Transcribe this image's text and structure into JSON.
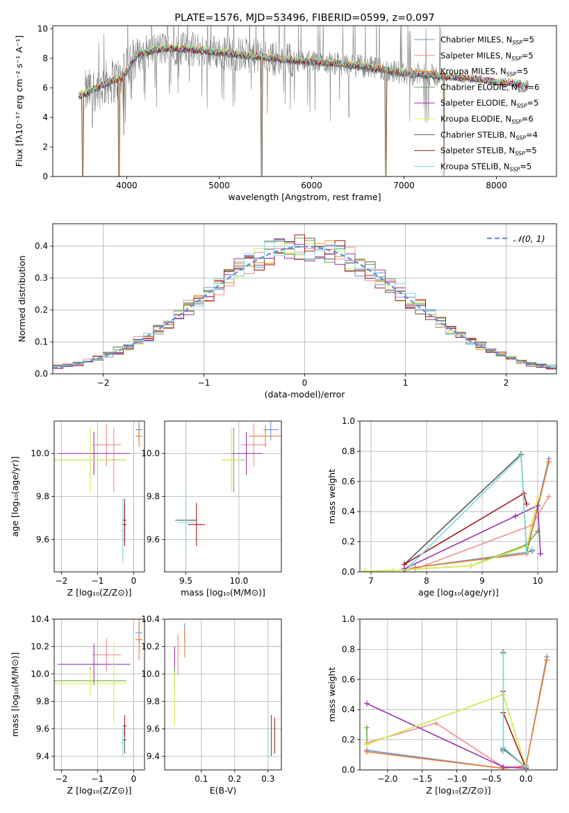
{
  "colors": {
    "chabrier_miles": "#6b8fd4",
    "salpeter_miles": "#f08c8c",
    "kroupa_miles": "#ee7d2a",
    "chabrier_elodie": "#6aa84f",
    "salpeter_elodie": "#9b30b0",
    "kroupa_elodie": "#d9ef50",
    "chabrier_stelib": "#555555",
    "salpeter_stelib": "#a01818",
    "kroupa_stelib": "#7ed8dc",
    "extra_pink": "#e377c2",
    "normal": "#6a8fd6",
    "grid": "#b0b0b0",
    "gray_spec": "#808080"
  },
  "chart_data": [
    {
      "id": "spectrum",
      "type": "line",
      "title": "PLATE=1576, MJD=53496, FIBERID=0599, z=0.097",
      "xlabel": "wavelength [Angstrom, rest frame]",
      "ylabel": "Flux [fλ10⁻¹⁷ erg cm⁻² s⁻¹ A⁻¹]",
      "xlim": [
        3200,
        8650
      ],
      "ylim": [
        0,
        10.2
      ],
      "xticks": [
        4000,
        5000,
        6000,
        7000,
        8000
      ],
      "yticks": [
        0,
        2,
        4,
        6,
        8,
        10
      ],
      "grid": false,
      "legend_loc": "upper right",
      "data_range": [
        3480,
        8350
      ],
      "continuum": {
        "x": [
          3480,
          3550,
          3700,
          3850,
          3950,
          4100,
          4300,
          4500,
          4700,
          5000,
          5300,
          5600,
          5900,
          6200,
          6500,
          6800,
          7000,
          7200,
          7400,
          7600,
          7800,
          8000,
          8200,
          8350
        ],
        "y": [
          5.5,
          5.6,
          6.1,
          6.5,
          6.6,
          8.2,
          8.6,
          8.7,
          8.6,
          8.4,
          8.2,
          8.0,
          7.8,
          7.7,
          7.5,
          7.2,
          7.0,
          6.9,
          6.8,
          6.7,
          6.6,
          6.4,
          6.3,
          6.2
        ]
      },
      "dips": [
        {
          "x": 3525,
          "y": 0.0
        },
        {
          "x": 3915,
          "y": 0.0
        },
        {
          "x": 3968,
          "y": 2.8
        },
        {
          "x": 5460,
          "y": 0.0
        },
        {
          "x": 6805,
          "y": 0.0
        },
        {
          "x": 7430,
          "y": 0.0
        }
      ],
      "gray_noise_range": [
        3550,
        7400
      ],
      "series": [
        {
          "label": "Chabrier MILES, N",
          "sub": "SSP",
          "eq": "=5",
          "color_key": "chabrier_miles"
        },
        {
          "label": "Salpeter MILES, N",
          "sub": "SSP",
          "eq": "=5",
          "color_key": "salpeter_miles"
        },
        {
          "label": "Kroupa MILES, N",
          "sub": "SSP",
          "eq": "=5",
          "color_key": "kroupa_miles"
        },
        {
          "label": "Chabrier ELODIE, N",
          "sub": "SSP",
          "eq": "=6",
          "color_key": "chabrier_elodie"
        },
        {
          "label": "Salpeter ELODIE, N",
          "sub": "SSP",
          "eq": "=5",
          "color_key": "salpeter_elodie"
        },
        {
          "label": "Kroupa ELODIE, N",
          "sub": "SSP",
          "eq": "=6",
          "color_key": "kroupa_elodie"
        },
        {
          "label": "Chabrier STELIB, N",
          "sub": "SSP",
          "eq": "=4",
          "color_key": "chabrier_stelib"
        },
        {
          "label": "Salpeter STELIB, N",
          "sub": "SSP",
          "eq": "=5",
          "color_key": "salpeter_stelib"
        },
        {
          "label": "Kroupa STELIB, N",
          "sub": "SSP",
          "eq": "=5",
          "color_key": "kroupa_stelib"
        }
      ]
    },
    {
      "id": "residuals",
      "type": "line",
      "xlabel": "(data-model)/error",
      "ylabel": "Normed distribution",
      "xlim": [
        -2.5,
        2.5
      ],
      "ylim": [
        0,
        0.47
      ],
      "xticks": [
        -2,
        -1,
        0,
        1,
        2
      ],
      "yticks": [
        0.0,
        0.1,
        0.2,
        0.3,
        0.4
      ],
      "grid": true,
      "legend_loc": "upper right",
      "normal_label": "𝒩(0, 1)",
      "bin_width": 0.1
    },
    {
      "id": "age_vs_z",
      "type": "scatter",
      "xlabel": "Z [log₁₀(Z/Z⊙)]",
      "ylabel": "age  [log₁₀(age/yr)]",
      "xlim": [
        -2.2,
        0.3
      ],
      "ylim": [
        9.45,
        10.15
      ],
      "xticks": [
        -2,
        -1,
        0
      ],
      "yticks": [
        9.6,
        9.8,
        10.0
      ],
      "grid": true,
      "points": [
        {
          "x": 0.15,
          "xerr": 0.1,
          "y": 10.11,
          "yerr": 0.05,
          "color_key": "chabrier_miles"
        },
        {
          "x": 0.15,
          "xerr": 0.1,
          "y": 10.08,
          "yerr": 0.05,
          "color_key": "kroupa_miles"
        },
        {
          "x": -0.75,
          "xerr": 0.4,
          "y": 10.04,
          "yerr": 0.1,
          "color_key": "salpeter_miles"
        },
        {
          "x": -1.1,
          "xerr": 1.0,
          "y": 10.0,
          "yerr": 0.1,
          "color_key": "salpeter_elodie"
        },
        {
          "x": -1.2,
          "xerr": 1.0,
          "y": 9.97,
          "yerr": 0.15,
          "color_key": "chabrier_elodie"
        },
        {
          "x": -1.2,
          "xerr": 1.0,
          "y": 9.97,
          "yerr": 0.15,
          "color_key": "kroupa_elodie"
        },
        {
          "x": -0.55,
          "xerr": 0.05,
          "y": 9.97,
          "yerr": 0.15,
          "color_key": "salpeter_miles"
        },
        {
          "x": -0.25,
          "xerr": 0.05,
          "y": 9.69,
          "yerr": 0.1,
          "color_key": "chabrier_stelib"
        },
        {
          "x": -0.25,
          "xerr": 0.05,
          "y": 9.67,
          "yerr": 0.1,
          "color_key": "salpeter_stelib"
        },
        {
          "x": -0.3,
          "xerr": 0.05,
          "y": 9.64,
          "yerr": 0.15,
          "color_key": "kroupa_stelib"
        }
      ]
    },
    {
      "id": "age_vs_mass",
      "type": "scatter",
      "xlabel": "mass [log₁₀(M/M⊙)]",
      "ylabel": "",
      "xlim": [
        9.3,
        10.4
      ],
      "ylim": [
        9.45,
        10.15
      ],
      "xticks": [
        9.5,
        10.0
      ],
      "yticks": [
        9.6,
        9.8,
        10.0
      ],
      "grid": true,
      "points": [
        {
          "x": 10.3,
          "xerr": 0.07,
          "y": 10.11,
          "yerr": 0.05,
          "color_key": "chabrier_miles"
        },
        {
          "x": 10.25,
          "xerr": 0.15,
          "y": 10.08,
          "yerr": 0.05,
          "color_key": "kroupa_miles"
        },
        {
          "x": 10.14,
          "xerr": 0.12,
          "y": 10.04,
          "yerr": 0.1,
          "color_key": "salpeter_miles"
        },
        {
          "x": 10.07,
          "xerr": 0.15,
          "y": 10.0,
          "yerr": 0.1,
          "color_key": "salpeter_elodie"
        },
        {
          "x": 9.95,
          "xerr": 0.1,
          "y": 9.97,
          "yerr": 0.15,
          "color_key": "chabrier_elodie"
        },
        {
          "x": 9.93,
          "xerr": 0.1,
          "y": 9.97,
          "yerr": 0.15,
          "color_key": "kroupa_elodie"
        },
        {
          "x": 9.5,
          "xerr": 0.1,
          "y": 9.69,
          "yerr": 0.1,
          "color_key": "chabrier_stelib"
        },
        {
          "x": 9.6,
          "xerr": 0.08,
          "y": 9.67,
          "yerr": 0.1,
          "color_key": "salpeter_stelib"
        },
        {
          "x": 9.5,
          "xerr": 0.08,
          "y": 9.68,
          "yerr": 0.15,
          "color_key": "kroupa_stelib"
        }
      ]
    },
    {
      "id": "mass_weight_vs_age",
      "type": "line",
      "xlabel": "age  [log₁₀(age/yr)]",
      "ylabel": "mass weight",
      "xlim": [
        6.8,
        10.35
      ],
      "ylim": [
        0,
        1.0
      ],
      "xticks": [
        7,
        8,
        9,
        10
      ],
      "yticks": [
        0.0,
        0.2,
        0.4,
        0.6,
        0.8,
        1.0
      ],
      "grid": true,
      "series": [
        {
          "color_key": "chabrier_miles",
          "x": [
            7.6,
            7.8,
            9.8,
            10.2
          ],
          "y": [
            0.01,
            0.03,
            0.13,
            0.75
          ]
        },
        {
          "color_key": "salpeter_miles",
          "x": [
            7.6,
            7.8,
            9.9,
            10.2
          ],
          "y": [
            0.01,
            0.02,
            0.31,
            0.5
          ]
        },
        {
          "color_key": "kroupa_miles",
          "x": [
            7.6,
            7.8,
            9.8,
            10.2
          ],
          "y": [
            0.01,
            0.03,
            0.12,
            0.73
          ]
        },
        {
          "color_key": "chabrier_elodie",
          "x": [
            6.9,
            7.4,
            8.8,
            9.8,
            10.0
          ],
          "y": [
            0.005,
            0.01,
            0.04,
            0.18,
            0.27
          ]
        },
        {
          "color_key": "salpeter_elodie",
          "x": [
            7.6,
            9.6,
            10.0,
            10.05
          ],
          "y": [
            0.02,
            0.37,
            0.44,
            0.12
          ]
        },
        {
          "color_key": "kroupa_elodie",
          "x": [
            6.9,
            7.4,
            8.8,
            9.8,
            10.0
          ],
          "y": [
            0.005,
            0.01,
            0.04,
            0.17,
            0.5
          ]
        },
        {
          "color_key": "chabrier_stelib",
          "x": [
            7.6,
            9.7,
            9.8,
            9.9
          ],
          "y": [
            0.05,
            0.78,
            0.13,
            0.14
          ]
        },
        {
          "color_key": "salpeter_stelib",
          "x": [
            7.6,
            9.75,
            9.8
          ],
          "y": [
            0.05,
            0.52,
            0.45
          ]
        },
        {
          "color_key": "kroupa_stelib",
          "x": [
            7.7,
            9.7,
            9.8,
            9.9
          ],
          "y": [
            0.04,
            0.77,
            0.13,
            0.15
          ]
        }
      ]
    },
    {
      "id": "mass_vs_z",
      "type": "scatter",
      "xlabel": "Z [log₁₀(Z/Z⊙)]",
      "ylabel": "mass [log₁₀(M/M⊙)]",
      "xlim": [
        -2.2,
        0.3
      ],
      "ylim": [
        9.3,
        10.4
      ],
      "xticks": [
        -2,
        -1,
        0
      ],
      "yticks": [
        9.4,
        9.6,
        9.8,
        10.0,
        10.2,
        10.4
      ],
      "grid": true,
      "points": [
        {
          "x": 0.15,
          "xerr": 0.1,
          "y": 10.3,
          "yerr": 0.07,
          "color_key": "chabrier_miles"
        },
        {
          "x": 0.15,
          "xerr": 0.1,
          "y": 10.25,
          "yerr": 0.15,
          "color_key": "kroupa_miles"
        },
        {
          "x": -0.75,
          "xerr": 0.4,
          "y": 10.14,
          "yerr": 0.12,
          "color_key": "salpeter_miles"
        },
        {
          "x": -1.1,
          "xerr": 1.0,
          "y": 10.07,
          "yerr": 0.15,
          "color_key": "salpeter_elodie"
        },
        {
          "x": -1.2,
          "xerr": 1.0,
          "y": 9.95,
          "yerr": 0.1,
          "color_key": "chabrier_elodie"
        },
        {
          "x": -1.2,
          "xerr": 1.0,
          "y": 9.93,
          "yerr": 0.1,
          "color_key": "kroupa_elodie"
        },
        {
          "x": -0.55,
          "xerr": 0.05,
          "y": 9.93,
          "yerr": 0.3,
          "color_key": "kroupa_elodie"
        },
        {
          "x": -0.25,
          "xerr": 0.05,
          "y": 9.52,
          "yerr": 0.1,
          "color_key": "chabrier_stelib"
        },
        {
          "x": -0.25,
          "xerr": 0.05,
          "y": 9.62,
          "yerr": 0.08,
          "color_key": "salpeter_stelib"
        },
        {
          "x": -0.3,
          "xerr": 0.05,
          "y": 9.5,
          "yerr": 0.1,
          "color_key": "kroupa_stelib"
        }
      ]
    },
    {
      "id": "mass_vs_ebv",
      "type": "scatter",
      "xlabel": "E(B-V)",
      "ylabel": "",
      "xlim": [
        -0.01,
        0.34
      ],
      "ylim": [
        9.3,
        10.4
      ],
      "xticks": [
        0.1,
        0.2,
        0.3
      ],
      "yticks": [
        9.4,
        9.6,
        9.8,
        10.0,
        10.2,
        10.4
      ],
      "grid": true,
      "points": [
        {
          "x": 0.05,
          "xerr": 0.0,
          "y": 10.3,
          "yerr": 0.07,
          "color_key": "chabrier_miles"
        },
        {
          "x": 0.05,
          "xerr": 0.0,
          "y": 10.22,
          "yerr": 0.1,
          "color_key": "kroupa_miles"
        },
        {
          "x": 0.03,
          "xerr": 0.0,
          "y": 10.14,
          "yerr": 0.15,
          "color_key": "salpeter_miles"
        },
        {
          "x": 0.02,
          "xerr": 0.0,
          "y": 10.05,
          "yerr": 0.15,
          "color_key": "salpeter_elodie"
        },
        {
          "x": 0.02,
          "xerr": 0.0,
          "y": 9.95,
          "yerr": 0.1,
          "color_key": "chabrier_elodie"
        },
        {
          "x": 0.02,
          "xerr": 0.0,
          "y": 9.82,
          "yerr": 0.2,
          "color_key": "kroupa_elodie"
        },
        {
          "x": 0.31,
          "xerr": 0.0,
          "y": 9.55,
          "yerr": 0.15,
          "color_key": "chabrier_stelib"
        },
        {
          "x": 0.32,
          "xerr": 0.0,
          "y": 9.55,
          "yerr": 0.13,
          "color_key": "salpeter_stelib"
        },
        {
          "x": 0.3,
          "xerr": 0.0,
          "y": 9.5,
          "yerr": 0.12,
          "color_key": "kroupa_stelib"
        }
      ]
    },
    {
      "id": "mass_weight_vs_z",
      "type": "line",
      "xlabel": "Z [log₁₀(Z/Z⊙)]",
      "ylabel": "mass weight",
      "xlim": [
        -2.4,
        0.45
      ],
      "ylim": [
        0,
        1.0
      ],
      "xticks": [
        -2.0,
        -1.5,
        -1.0,
        -0.5,
        0.0
      ],
      "yticks": [
        0.0,
        0.2,
        0.4,
        0.6,
        0.8,
        1.0
      ],
      "grid": true,
      "series": [
        {
          "color_key": "chabrier_miles",
          "x": [
            -2.3,
            -0.33,
            0.0,
            0.3
          ],
          "y": [
            0.13,
            0.01,
            0.03,
            0.75
          ]
        },
        {
          "color_key": "kroupa_miles",
          "x": [
            -2.3,
            -0.33,
            0.0,
            0.3
          ],
          "y": [
            0.12,
            0.01,
            0.03,
            0.73
          ]
        },
        {
          "color_key": "salpeter_miles",
          "x": [
            -2.3,
            -1.3,
            -0.33,
            0.0
          ],
          "y": [
            0.18,
            0.31,
            0.02,
            0.02
          ]
        },
        {
          "color_key": "salpeter_elodie",
          "x": [
            -2.3,
            -0.33,
            0.0
          ],
          "y": [
            0.44,
            0.02,
            0.01
          ]
        },
        {
          "color_key": "chabrier_elodie",
          "x": [
            -2.3,
            -2.3,
            -0.33,
            0.0
          ],
          "y": [
            0.28,
            0.17,
            0.5,
            0.01
          ]
        },
        {
          "color_key": "kroupa_elodie",
          "x": [
            -2.3,
            -0.33,
            0.0
          ],
          "y": [
            0.17,
            0.5,
            0.01
          ]
        },
        {
          "color_key": "chabrier_stelib",
          "x": [
            -0.33,
            -0.33,
            -0.33,
            0.0
          ],
          "y": [
            0.78,
            0.13,
            0.14,
            0.02
          ]
        },
        {
          "color_key": "salpeter_stelib",
          "x": [
            -0.33,
            -0.33,
            0.0
          ],
          "y": [
            0.52,
            0.38,
            0.01
          ]
        },
        {
          "color_key": "kroupa_stelib",
          "x": [
            -0.33,
            -0.33,
            -0.33,
            0.0
          ],
          "y": [
            0.77,
            0.12,
            0.15,
            0.02
          ]
        }
      ]
    }
  ]
}
